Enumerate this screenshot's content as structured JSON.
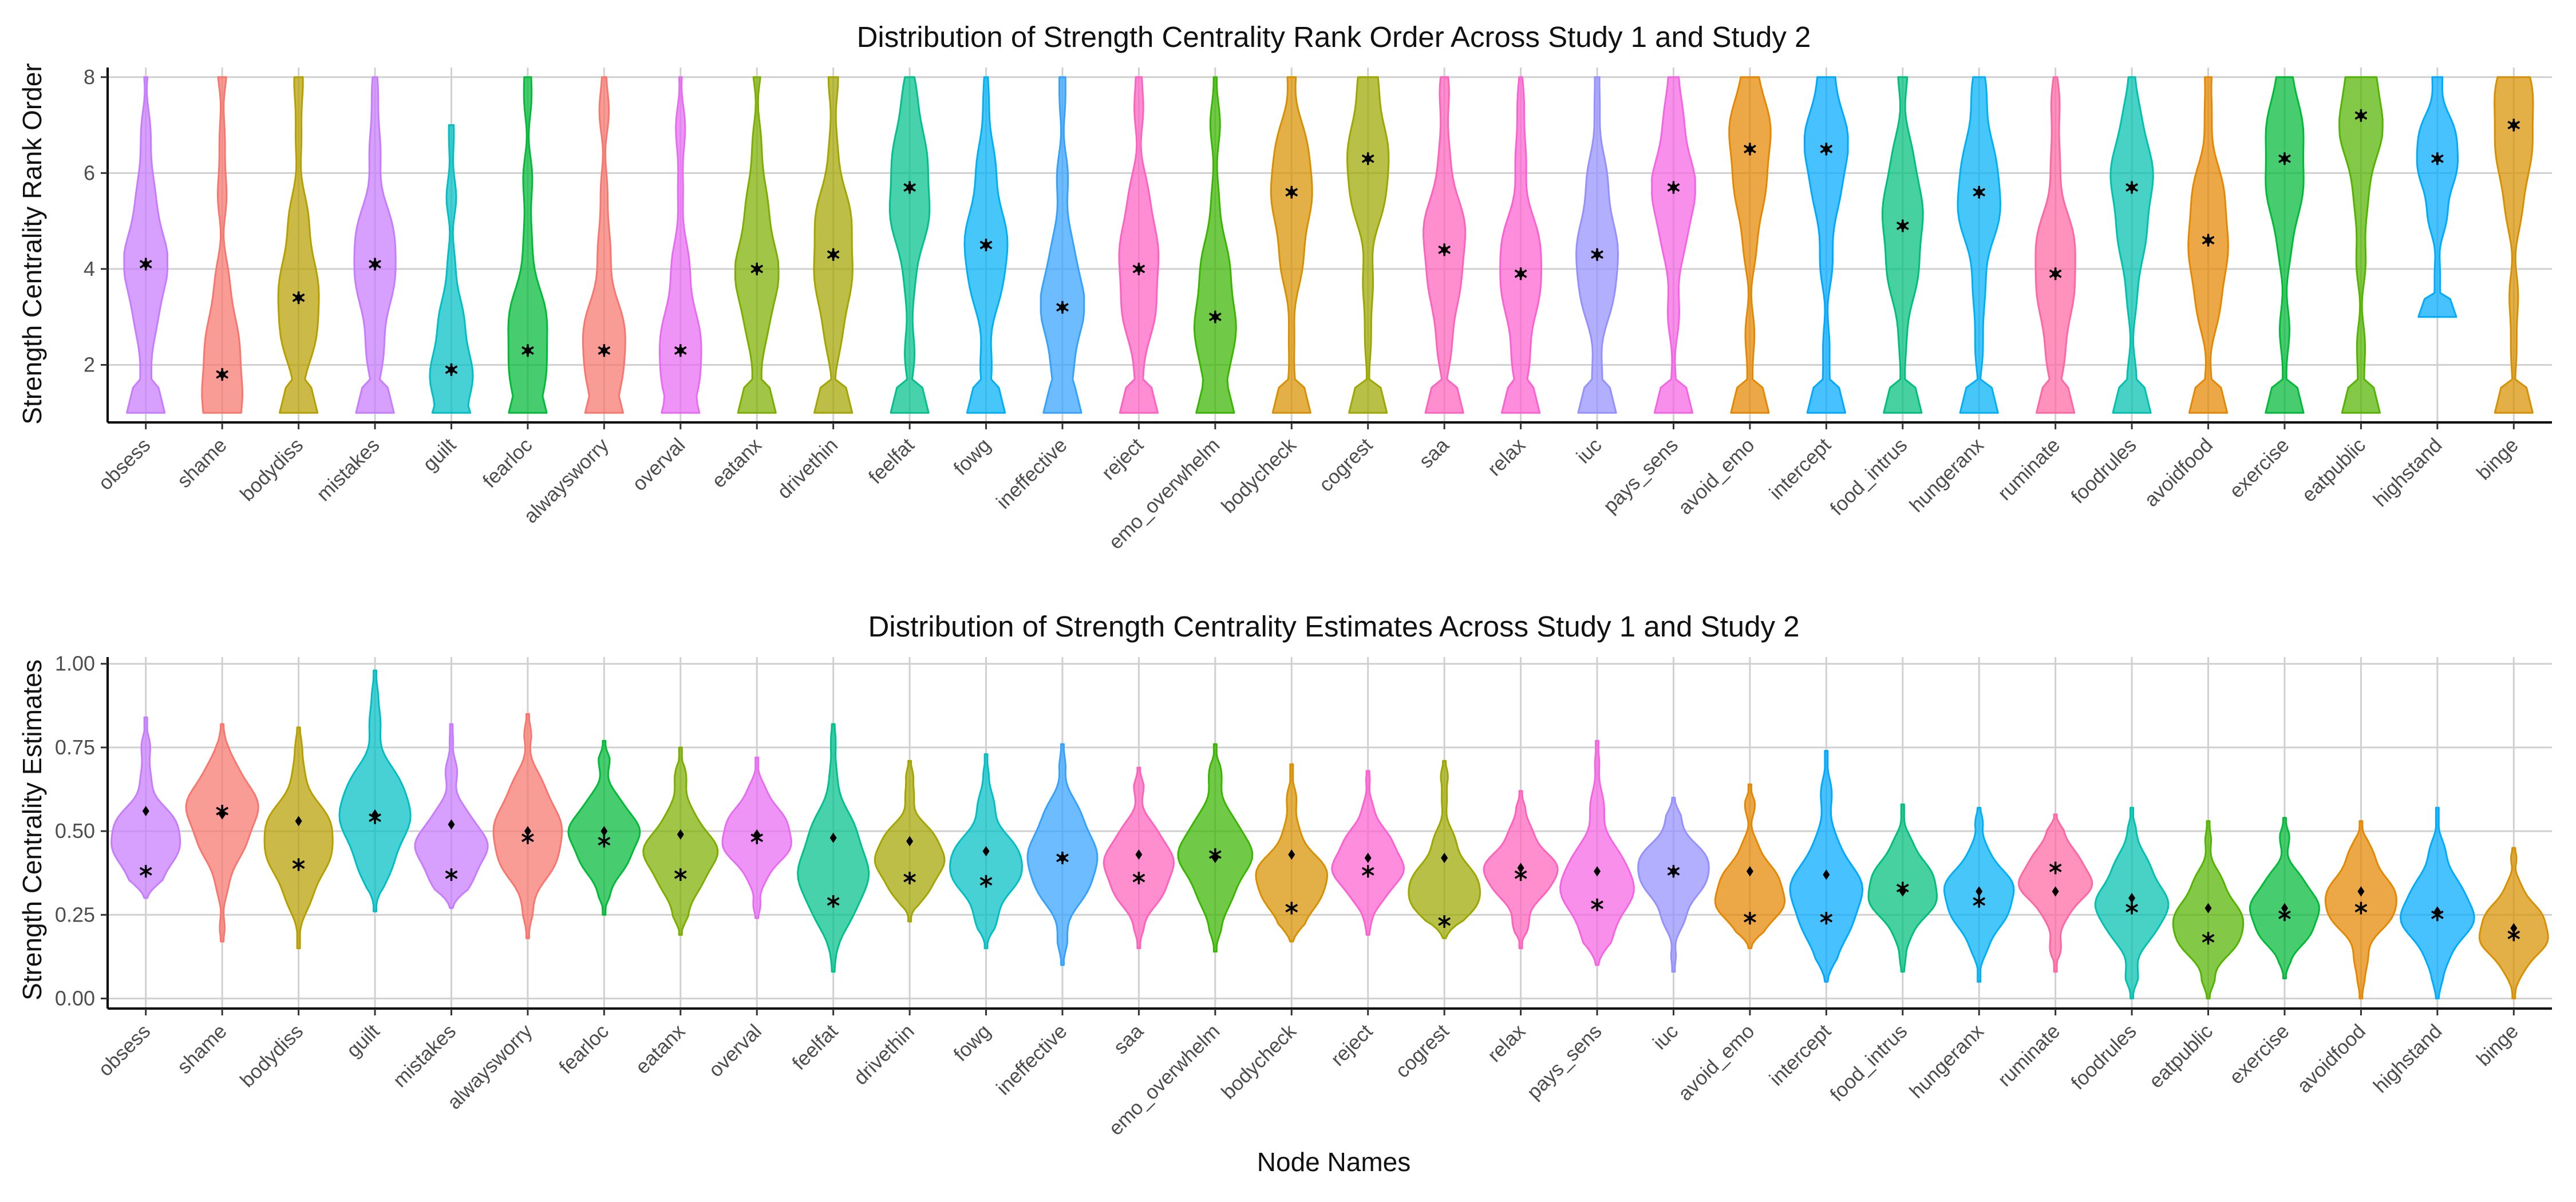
{
  "chart_data": [
    {
      "type": "violin",
      "title": "Distribution of Strength Centrality Rank Order Across Study 1 and Study 2",
      "ylabel": "Strength Centrality Rank Order",
      "xlabel": "",
      "ylim": [
        0.8,
        8.2
      ],
      "yticks": [
        2,
        4,
        6,
        8
      ],
      "grid": true,
      "categories": [
        "obsess",
        "shame",
        "bodydiss",
        "mistakes",
        "guilt",
        "fearloc",
        "alwaysworry",
        "overval",
        "eatanx",
        "drivethin",
        "feelfat",
        "fowg",
        "ineffective",
        "reject",
        "emo_overwhelm",
        "bodycheck",
        "cogrest",
        "saa",
        "relax",
        "iuc",
        "pays_sens",
        "avoid_emo",
        "intercept",
        "food_intrus",
        "hungeranx",
        "ruminate",
        "foodrules",
        "avoidfood",
        "exercise",
        "eatpublic",
        "highstand",
        "binge"
      ],
      "colors": [
        "#C77CFF",
        "#F8766D",
        "#B79F00",
        "#C77CFF",
        "#00BFC4",
        "#00BA38",
        "#F8766D",
        "#E76BF3",
        "#7CAE00",
        "#A3A500",
        "#00C08B",
        "#00B0F6",
        "#35A2FF",
        "#FF61C3",
        "#39B600",
        "#D89000",
        "#9CA700",
        "#FF62BC",
        "#FD61D1",
        "#9590FF",
        "#F564E3",
        "#E58700",
        "#00A9FF",
        "#00BF7D",
        "#00B0F6",
        "#FF67A4",
        "#00C0AF",
        "#E58700",
        "#00BA38",
        "#53B400",
        "#00ABFD",
        "#D89000"
      ],
      "ranges": [
        [
          1,
          8
        ],
        [
          1,
          8
        ],
        [
          1,
          8
        ],
        [
          1,
          8
        ],
        [
          1,
          7
        ],
        [
          1,
          8
        ],
        [
          1,
          8
        ],
        [
          1,
          8
        ],
        [
          1,
          8
        ],
        [
          1,
          8
        ],
        [
          1,
          8
        ],
        [
          1,
          8
        ],
        [
          1,
          8
        ],
        [
          1,
          8
        ],
        [
          1,
          8
        ],
        [
          1,
          8
        ],
        [
          1,
          8
        ],
        [
          1,
          8
        ],
        [
          1,
          8
        ],
        [
          1,
          8
        ],
        [
          1,
          8
        ],
        [
          1,
          8
        ],
        [
          1,
          8
        ],
        [
          1,
          8
        ],
        [
          1,
          8
        ],
        [
          1,
          8
        ],
        [
          1,
          8
        ],
        [
          1,
          8
        ],
        [
          1,
          8
        ],
        [
          1,
          8
        ],
        [
          3,
          8
        ],
        [
          1,
          8
        ]
      ],
      "study1": [
        4.1,
        1.8,
        3.4,
        4.1,
        1.9,
        2.3,
        2.3,
        2.3,
        4.0,
        4.3,
        5.7,
        4.5,
        3.2,
        4.0,
        3.0,
        5.6,
        6.3,
        4.4,
        3.9,
        4.3,
        5.7,
        6.5,
        6.5,
        4.9,
        5.6,
        3.9,
        5.7,
        4.6,
        6.3,
        7.2,
        6.3,
        7.0
      ],
      "study2": [
        4.1,
        1.8,
        3.4,
        4.1,
        1.9,
        2.3,
        2.3,
        2.3,
        4.0,
        4.3,
        5.7,
        4.5,
        3.2,
        4.0,
        3.0,
        5.6,
        6.3,
        4.4,
        3.9,
        4.3,
        5.7,
        6.5,
        6.5,
        4.9,
        5.6,
        3.9,
        5.7,
        4.6,
        6.3,
        7.2,
        6.3,
        7.0
      ]
    },
    {
      "type": "violin",
      "title": "Distribution of Strength Centrality Estimates Across Study 1 and Study 2",
      "ylabel": "Strength Centrality Estimates",
      "xlabel": "Node Names",
      "ylim": [
        -0.03,
        1.02
      ],
      "yticks": [
        0.0,
        0.25,
        0.5,
        0.75,
        1.0
      ],
      "ytick_labels": [
        "0.00",
        "0.25",
        "0.50",
        "0.75",
        "1.00"
      ],
      "grid": true,
      "categories": [
        "obsess",
        "shame",
        "bodydiss",
        "guilt",
        "mistakes",
        "alwaysworry",
        "fearloc",
        "eatanx",
        "overval",
        "feelfat",
        "drivethin",
        "fowg",
        "ineffective",
        "saa",
        "emo_overwhelm",
        "bodycheck",
        "reject",
        "cogrest",
        "relax",
        "pays_sens",
        "iuc",
        "avoid_emo",
        "intercept",
        "food_intrus",
        "hungeranx",
        "ruminate",
        "foodrules",
        "eatpublic",
        "exercise",
        "avoidfood",
        "highstand",
        "binge"
      ],
      "colors": [
        "#C77CFF",
        "#F8766D",
        "#B79F00",
        "#00BFC4",
        "#C77CFF",
        "#F8766D",
        "#00BA38",
        "#7CAE00",
        "#E76BF3",
        "#00C08B",
        "#A3A500",
        "#00BFC4",
        "#35A2FF",
        "#FF62BC",
        "#39B600",
        "#D89000",
        "#FD61D1",
        "#9CA700",
        "#FF62BC",
        "#F564E3",
        "#9590FF",
        "#E58700",
        "#00A9FF",
        "#00BF7D",
        "#00B0F6",
        "#FF67A4",
        "#00C0AF",
        "#53B400",
        "#00BA38",
        "#E58700",
        "#00ABFD",
        "#D89000"
      ],
      "ranges": [
        [
          0.3,
          0.84
        ],
        [
          0.17,
          0.82
        ],
        [
          0.15,
          0.81
        ],
        [
          0.26,
          0.98
        ],
        [
          0.27,
          0.82
        ],
        [
          0.18,
          0.85
        ],
        [
          0.25,
          0.77
        ],
        [
          0.19,
          0.75
        ],
        [
          0.24,
          0.72
        ],
        [
          0.08,
          0.82
        ],
        [
          0.23,
          0.71
        ],
        [
          0.15,
          0.73
        ],
        [
          0.1,
          0.76
        ],
        [
          0.15,
          0.69
        ],
        [
          0.14,
          0.76
        ],
        [
          0.17,
          0.7
        ],
        [
          0.19,
          0.68
        ],
        [
          0.18,
          0.71
        ],
        [
          0.15,
          0.62
        ],
        [
          0.1,
          0.77
        ],
        [
          0.08,
          0.6
        ],
        [
          0.15,
          0.64
        ],
        [
          0.05,
          0.74
        ],
        [
          0.08,
          0.58
        ],
        [
          0.05,
          0.57
        ],
        [
          0.08,
          0.55
        ],
        [
          0.0,
          0.57
        ],
        [
          0.0,
          0.53
        ],
        [
          0.06,
          0.54
        ],
        [
          0.0,
          0.53
        ],
        [
          0.0,
          0.57
        ],
        [
          0.0,
          0.45
        ]
      ],
      "study1": [
        0.56,
        0.55,
        0.53,
        0.55,
        0.52,
        0.5,
        0.5,
        0.49,
        0.49,
        0.48,
        0.47,
        0.44,
        0.42,
        0.43,
        0.42,
        0.43,
        0.42,
        0.42,
        0.39,
        0.38,
        0.38,
        0.38,
        0.37,
        0.32,
        0.32,
        0.32,
        0.3,
        0.27,
        0.27,
        0.32,
        0.26,
        0.21
      ],
      "study2": [
        0.38,
        0.56,
        0.4,
        0.54,
        0.37,
        0.48,
        0.47,
        0.37,
        0.48,
        0.29,
        0.36,
        0.35,
        0.42,
        0.36,
        0.43,
        0.27,
        0.38,
        0.23,
        0.37,
        0.28,
        0.38,
        0.24,
        0.24,
        0.33,
        0.29,
        0.39,
        0.27,
        0.18,
        0.25,
        0.27,
        0.25,
        0.19
      ]
    }
  ]
}
